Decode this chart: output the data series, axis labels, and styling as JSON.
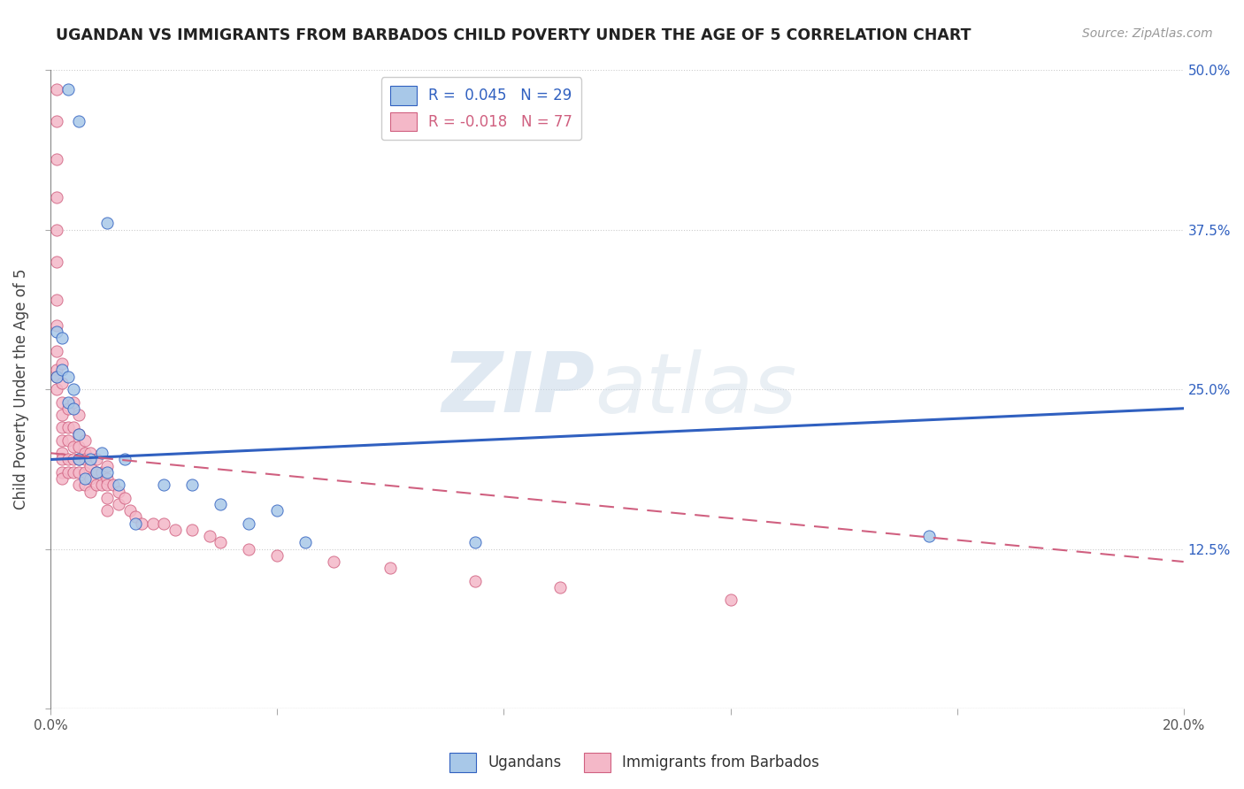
{
  "title": "UGANDAN VS IMMIGRANTS FROM BARBADOS CHILD POVERTY UNDER THE AGE OF 5 CORRELATION CHART",
  "source": "Source: ZipAtlas.com",
  "ylabel": "Child Poverty Under the Age of 5",
  "xlim": [
    0.0,
    0.2
  ],
  "ylim": [
    0.0,
    0.5
  ],
  "xticks": [
    0.0,
    0.04,
    0.08,
    0.12,
    0.16,
    0.2
  ],
  "xticklabels": [
    "0.0%",
    "",
    "",
    "",
    "",
    "20.0%"
  ],
  "yticks": [
    0.0,
    0.125,
    0.25,
    0.375,
    0.5
  ],
  "yticklabels_right": [
    "",
    "12.5%",
    "25.0%",
    "37.5%",
    "50.0%"
  ],
  "legend_label1": "Ugandans",
  "legend_label2": "Immigrants from Barbados",
  "color_ugandan": "#a8c8e8",
  "color_barbados": "#f4b8c8",
  "trend_color_ugandan": "#3060c0",
  "trend_color_barbados": "#d06080",
  "background_color": "#ffffff",
  "watermark_zip": "ZIP",
  "watermark_atlas": "atlas",
  "ugandan_x": [
    0.003,
    0.005,
    0.01,
    0.001,
    0.001,
    0.002,
    0.002,
    0.003,
    0.003,
    0.004,
    0.004,
    0.005,
    0.005,
    0.006,
    0.007,
    0.008,
    0.009,
    0.01,
    0.012,
    0.013,
    0.015,
    0.02,
    0.025,
    0.03,
    0.035,
    0.04,
    0.045,
    0.075,
    0.155
  ],
  "ugandan_y": [
    0.485,
    0.46,
    0.38,
    0.295,
    0.26,
    0.265,
    0.29,
    0.24,
    0.26,
    0.25,
    0.235,
    0.215,
    0.195,
    0.18,
    0.195,
    0.185,
    0.2,
    0.185,
    0.175,
    0.195,
    0.145,
    0.175,
    0.175,
    0.16,
    0.145,
    0.155,
    0.13,
    0.13,
    0.135
  ],
  "barbados_x": [
    0.001,
    0.001,
    0.001,
    0.001,
    0.001,
    0.001,
    0.001,
    0.001,
    0.001,
    0.001,
    0.001,
    0.001,
    0.002,
    0.002,
    0.002,
    0.002,
    0.002,
    0.002,
    0.002,
    0.002,
    0.002,
    0.002,
    0.003,
    0.003,
    0.003,
    0.003,
    0.003,
    0.004,
    0.004,
    0.004,
    0.004,
    0.004,
    0.005,
    0.005,
    0.005,
    0.005,
    0.005,
    0.005,
    0.006,
    0.006,
    0.006,
    0.006,
    0.006,
    0.007,
    0.007,
    0.007,
    0.007,
    0.008,
    0.008,
    0.008,
    0.009,
    0.009,
    0.01,
    0.01,
    0.01,
    0.01,
    0.01,
    0.011,
    0.012,
    0.012,
    0.013,
    0.014,
    0.015,
    0.016,
    0.018,
    0.02,
    0.022,
    0.025,
    0.028,
    0.03,
    0.035,
    0.04,
    0.05,
    0.06,
    0.075,
    0.09,
    0.12
  ],
  "barbados_y": [
    0.485,
    0.46,
    0.43,
    0.4,
    0.375,
    0.35,
    0.32,
    0.3,
    0.28,
    0.265,
    0.26,
    0.25,
    0.27,
    0.255,
    0.24,
    0.23,
    0.22,
    0.21,
    0.2,
    0.195,
    0.185,
    0.18,
    0.235,
    0.22,
    0.21,
    0.195,
    0.185,
    0.24,
    0.22,
    0.205,
    0.195,
    0.185,
    0.23,
    0.215,
    0.205,
    0.195,
    0.185,
    0.175,
    0.21,
    0.2,
    0.195,
    0.185,
    0.175,
    0.2,
    0.19,
    0.18,
    0.17,
    0.195,
    0.185,
    0.175,
    0.185,
    0.175,
    0.19,
    0.18,
    0.175,
    0.165,
    0.155,
    0.175,
    0.17,
    0.16,
    0.165,
    0.155,
    0.15,
    0.145,
    0.145,
    0.145,
    0.14,
    0.14,
    0.135,
    0.13,
    0.125,
    0.12,
    0.115,
    0.11,
    0.1,
    0.095,
    0.085
  ],
  "trend_ug_y0": 0.195,
  "trend_ug_y1": 0.235,
  "trend_bar_y0": 0.2,
  "trend_bar_y1": 0.115
}
